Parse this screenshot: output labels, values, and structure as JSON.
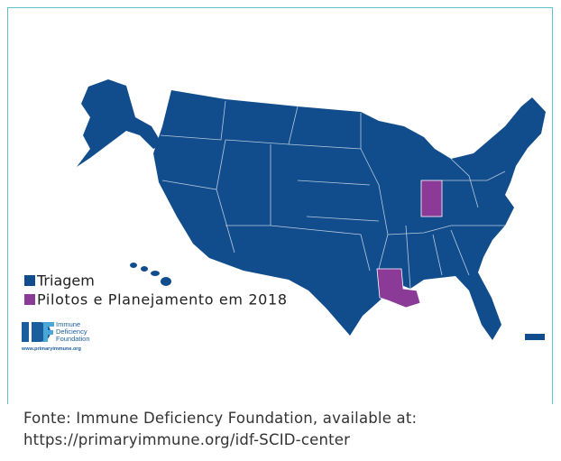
{
  "legend": {
    "items": [
      {
        "label": "Triagem",
        "color": "#114d8d"
      },
      {
        "label": "Pilotos e Planejamento em 2018",
        "color": "#8b3a98"
      }
    ]
  },
  "logo": {
    "lines": [
      "Immune",
      "Deficiency",
      "Foundation"
    ],
    "url": "www.primaryimmune.org"
  },
  "caption": "Fonte: Immune Deficiency Foundation, available at: https://primaryimmune.org/idf-SCID-center"
}
